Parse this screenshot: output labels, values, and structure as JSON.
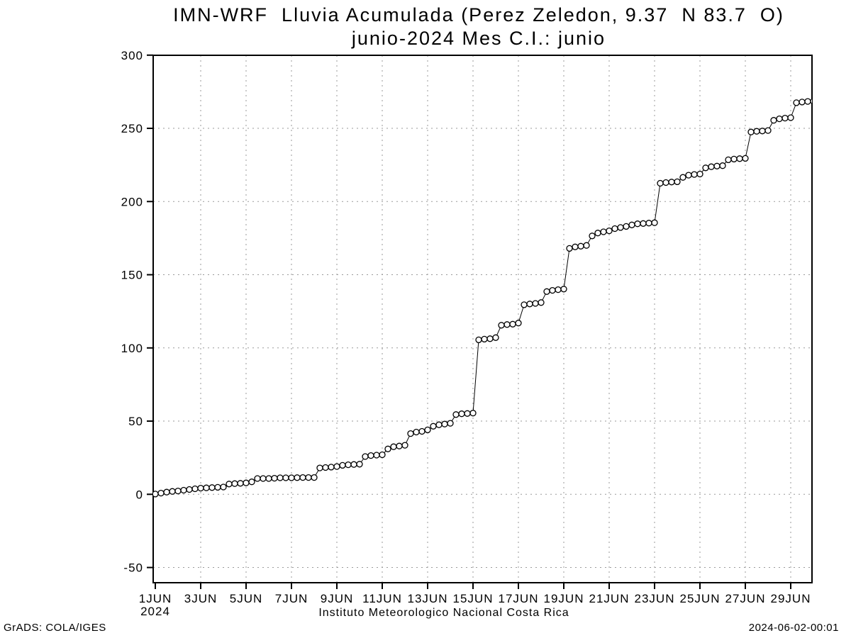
{
  "page": {
    "title": "IMN-WRF  Lluvia Acumulada (Perez Zeledon, 9.37  N 83.7  O)",
    "subtitle": "junio-2024 Mes C.I.: junio",
    "xlabel": "Instituto Meteorologico Nacional Costa Rica",
    "footer_left": "GrADS: COLA/IGES",
    "footer_right": "2024-06-02-00:01"
  },
  "chart_data": {
    "type": "line",
    "title": "IMN-WRF  Lluvia Acumulada (Perez Zeledon, 9.37  N 83.7  O)",
    "subtitle": "junio-2024 Mes C.I.: junio",
    "xlabel": "Instituto Meteorologico Nacional Costa Rica",
    "ylabel": "",
    "ylim": [
      -60,
      300
    ],
    "grid": true,
    "legend_position": "none",
    "marker": "open-circle",
    "line_color": "#000000",
    "marker_fill": "#ffffff",
    "grid_color": "#9a9a9a",
    "frame_color": "#000000",
    "y_ticks": [
      {
        "value": -50,
        "label": "-50"
      },
      {
        "value": 0,
        "label": "0"
      },
      {
        "value": 50,
        "label": "50"
      },
      {
        "value": 100,
        "label": "100"
      },
      {
        "value": 150,
        "label": "150"
      },
      {
        "value": 200,
        "label": "200"
      },
      {
        "value": 250,
        "label": "250"
      },
      {
        "value": 300,
        "label": "300"
      }
    ],
    "x_ticks": [
      {
        "day": 1,
        "label": "1JUN",
        "sublabel": "2024"
      },
      {
        "day": 3,
        "label": "3JUN"
      },
      {
        "day": 5,
        "label": "5JUN"
      },
      {
        "day": 7,
        "label": "7JUN"
      },
      {
        "day": 9,
        "label": "9JUN"
      },
      {
        "day": 11,
        "label": "11JUN"
      },
      {
        "day": 13,
        "label": "13JUN"
      },
      {
        "day": 15,
        "label": "15JUN"
      },
      {
        "day": 17,
        "label": "17JUN"
      },
      {
        "day": 19,
        "label": "19JUN"
      },
      {
        "day": 21,
        "label": "21JUN"
      },
      {
        "day": 23,
        "label": "23JUN"
      },
      {
        "day": 25,
        "label": "25JUN"
      },
      {
        "day": 27,
        "label": "27JUN"
      },
      {
        "day": 29,
        "label": "29JUN"
      }
    ],
    "series": [
      {
        "name": "lluvia-acumulada-mm",
        "start_day": 1,
        "step_days": 0.25,
        "values": [
          0.2,
          0.8,
          1.5,
          2.0,
          2.3,
          2.8,
          3.3,
          3.8,
          4.2,
          4.4,
          4.6,
          4.8,
          5.0,
          7.0,
          7.3,
          7.5,
          7.8,
          8.5,
          10.8,
          10.8,
          10.8,
          11.0,
          11.3,
          11.3,
          11.3,
          11.4,
          11.5,
          11.5,
          11.5,
          18.0,
          18.3,
          18.6,
          19.0,
          19.8,
          20.2,
          20.4,
          20.6,
          25.8,
          26.5,
          26.8,
          27.0,
          31.0,
          32.5,
          33.0,
          33.5,
          41.5,
          42.5,
          43.0,
          44.0,
          46.5,
          47.5,
          48.0,
          48.5,
          54.5,
          55.0,
          55.2,
          55.5,
          105.5,
          106.0,
          106.3,
          107.0,
          115.5,
          116.0,
          116.2,
          117.0,
          129.5,
          130.0,
          130.4,
          131.0,
          138.5,
          139.3,
          139.8,
          140.2,
          168.0,
          169.0,
          169.5,
          170.0,
          176.5,
          178.5,
          179.3,
          180.0,
          181.5,
          182.3,
          183.0,
          184.0,
          184.8,
          185.0,
          185.3,
          185.5,
          212.5,
          213.0,
          213.3,
          213.5,
          216.5,
          218.0,
          218.5,
          218.8,
          223.0,
          223.8,
          224.2,
          224.5,
          228.5,
          229.0,
          229.3,
          229.5,
          247.5,
          248.0,
          248.2,
          248.5,
          255.5,
          256.5,
          257.0,
          257.3,
          267.5,
          268.0,
          268.4,
          268.5
        ]
      }
    ]
  }
}
